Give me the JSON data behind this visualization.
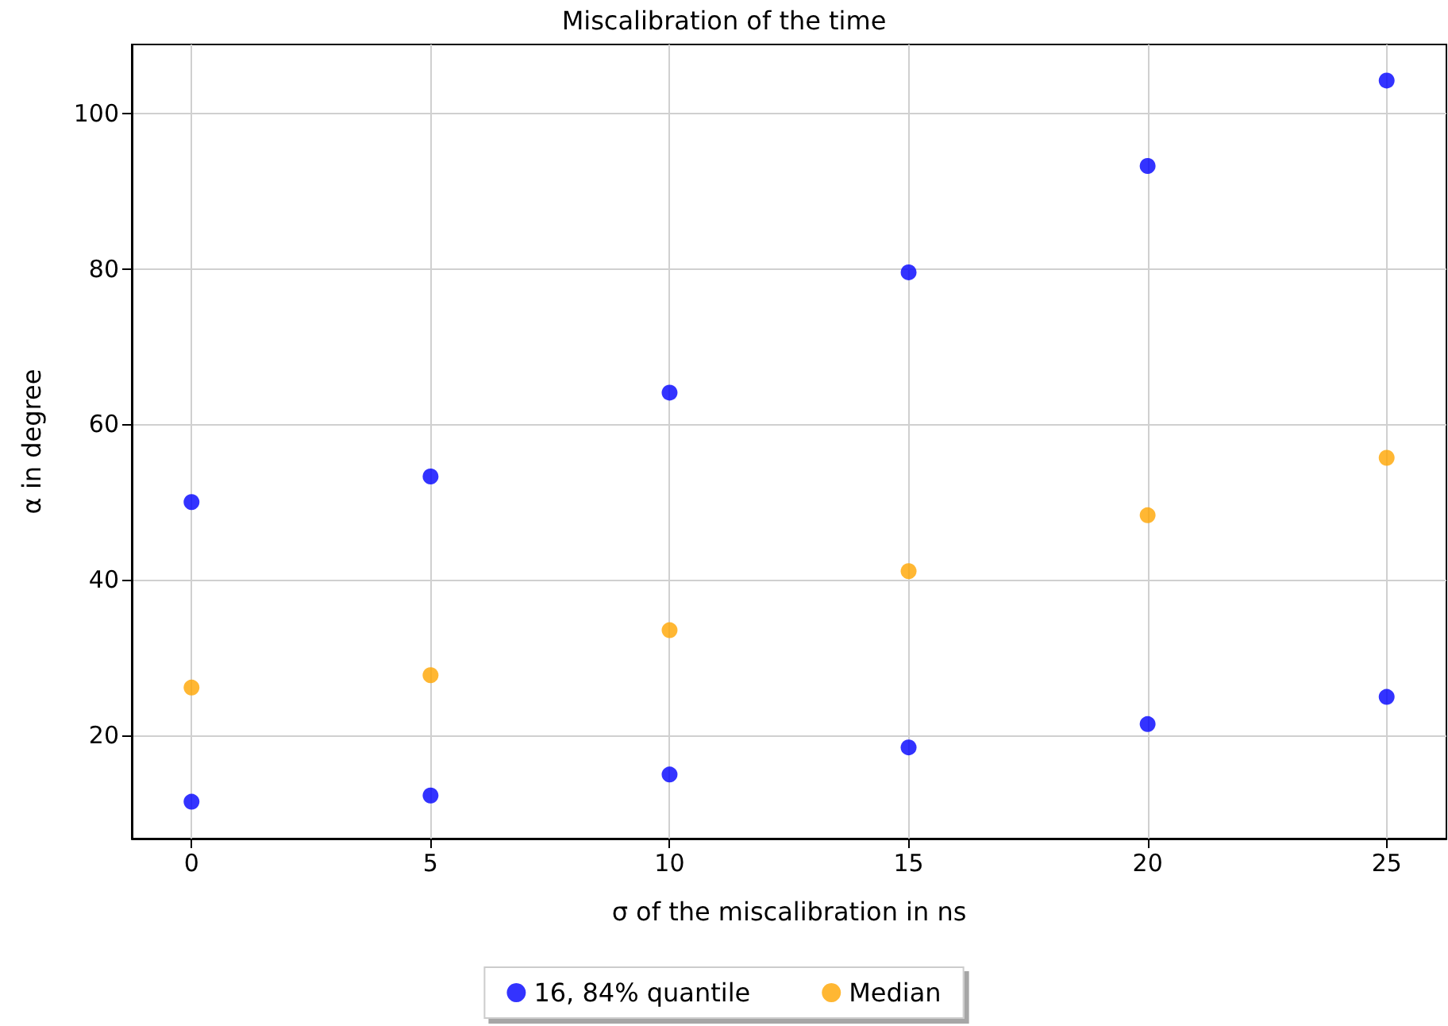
{
  "chart_data": {
    "type": "scatter",
    "title": "Miscalibration of the time",
    "xlabel": "σ of the miscalibration in ns",
    "ylabel": "α in degree",
    "series": [
      {
        "name": "16, 84% quantile",
        "color": "#0000ff",
        "x": [
          0,
          5,
          10,
          15,
          20,
          25,
          0,
          5,
          10,
          15,
          20,
          25
        ],
        "values": [
          50.0,
          53.3,
          64.1,
          79.6,
          93.3,
          104.3,
          11.4,
          12.2,
          14.9,
          18.4,
          21.4,
          24.9
        ]
      },
      {
        "name": "Median",
        "color": "#ffa500",
        "x": [
          0,
          5,
          10,
          15,
          20,
          25
        ],
        "values": [
          26.1,
          27.7,
          33.5,
          41.1,
          48.3,
          55.7
        ]
      }
    ],
    "xlim": [
      -1.25,
      26.25
    ],
    "xticks": [
      0,
      5,
      10,
      15,
      20,
      25
    ],
    "ylim": [
      6.65,
      108.95
    ],
    "yticks": [
      20,
      40,
      60,
      80,
      100
    ],
    "grid": true,
    "legend": "bottom",
    "marker": "circle"
  }
}
